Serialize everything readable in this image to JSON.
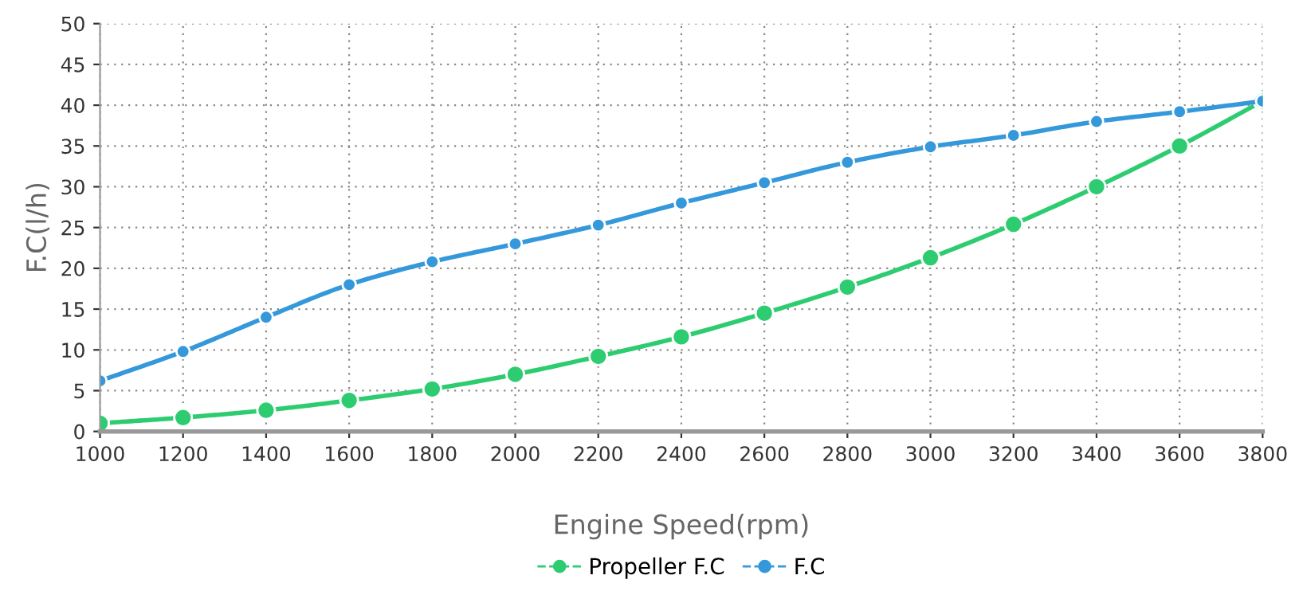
{
  "chart_data": {
    "type": "line",
    "xlabel": "Engine Speed(rpm)",
    "ylabel": "F.C(l/h)",
    "x": [
      1000,
      1200,
      1400,
      1600,
      1800,
      2000,
      2200,
      2400,
      2600,
      2800,
      3000,
      3200,
      3400,
      3600,
      3800
    ],
    "series": [
      {
        "name": "Propeller F.C",
        "color": "#2ecc71",
        "values": [
          1.0,
          1.7,
          2.6,
          3.8,
          5.2,
          7.0,
          9.2,
          11.6,
          14.5,
          17.7,
          21.3,
          25.4,
          30.0,
          35.0,
          40.5
        ]
      },
      {
        "name": "F.C",
        "color": "#3498db",
        "values": [
          6.2,
          9.8,
          14.0,
          18.0,
          20.8,
          23.0,
          25.3,
          28.0,
          30.5,
          33.0,
          34.9,
          36.3,
          38.0,
          39.2,
          40.5
        ]
      }
    ],
    "xlim": [
      1000,
      3800
    ],
    "xticks": [
      1000,
      1200,
      1400,
      1600,
      1800,
      2000,
      2200,
      2400,
      2600,
      2800,
      3000,
      3200,
      3400,
      3600,
      3800
    ],
    "ylim": [
      0,
      50
    ],
    "yticks": [
      0,
      5,
      10,
      15,
      20,
      25,
      30,
      35,
      40,
      45,
      50
    ],
    "grid": true,
    "legend": "bottom",
    "marker": "circle",
    "line_style": "solid"
  }
}
